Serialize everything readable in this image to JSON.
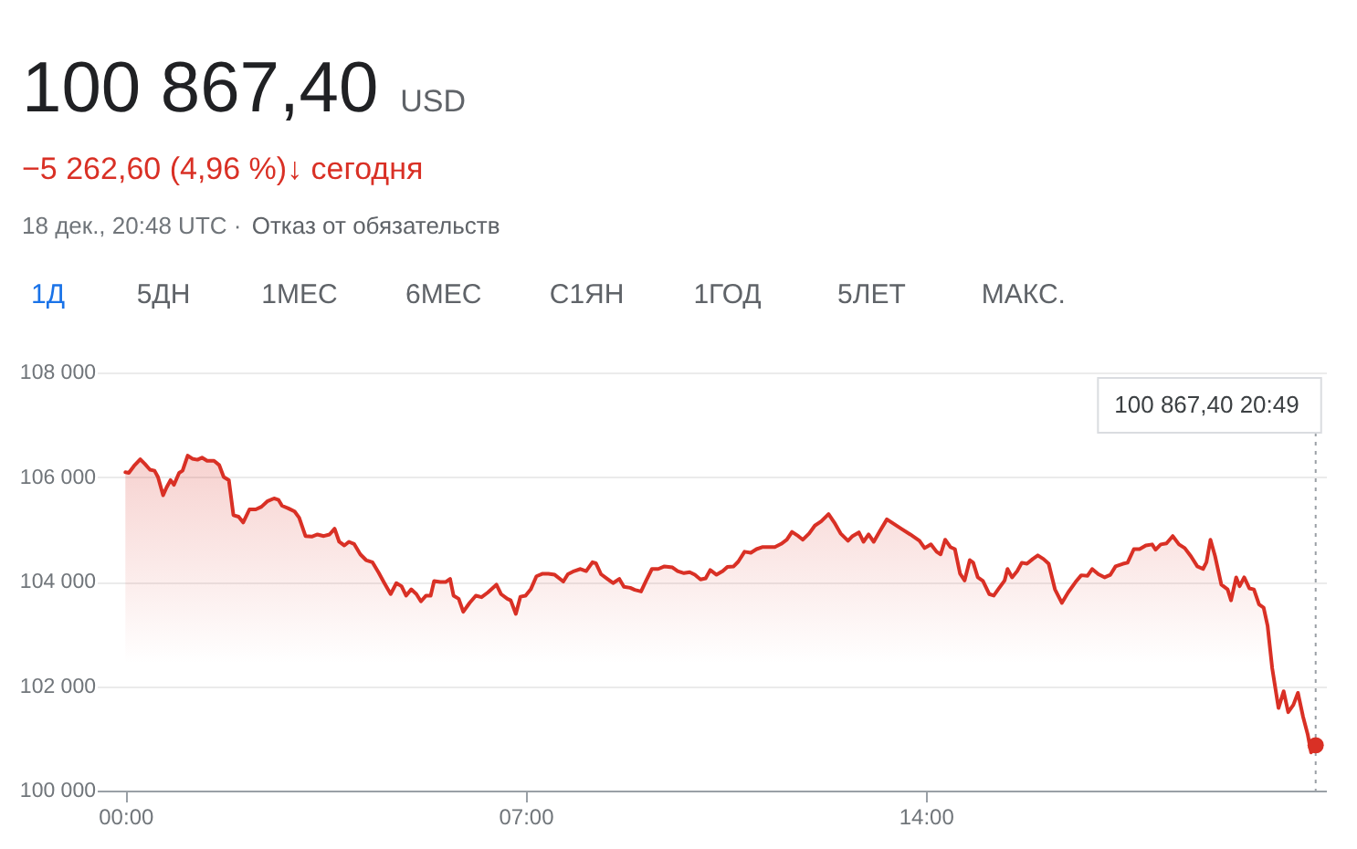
{
  "chart_data": {
    "type": "area",
    "title": "100 867,40 USD",
    "subtitle": "−5 262,60 (4,96 %)↓ сегодня",
    "annotations": [
      "18 дек., 20:48 UTC ·",
      "Отказ от обязательств",
      "1Д",
      "5ДН",
      "1МЕС",
      "6МЕС",
      "С1ЯН",
      "1ГОД",
      "5ЛЕТ",
      "МАКС.",
      "100 867,40 20:49"
    ],
    "xlim": [
      -0.5,
      21.0
    ],
    "xticks": [
      {
        "value": 0,
        "label": "00:00"
      },
      {
        "value": 7,
        "label": "07:00"
      },
      {
        "value": 14,
        "label": "14:00"
      }
    ],
    "ylim": [
      100000,
      108000
    ],
    "yticks": [
      {
        "value": 100000,
        "label": "100 000"
      },
      {
        "value": 102000,
        "label": "102 000"
      },
      {
        "value": 104000,
        "label": "104 000"
      },
      {
        "value": 106000,
        "label": "106 000"
      },
      {
        "value": 108000,
        "label": "108 000"
      }
    ],
    "grid": "y",
    "series": [
      {
        "color": "#d93025",
        "x": [
          0.0,
          0.06,
          0.15,
          0.26,
          0.34,
          0.43,
          0.51,
          0.57,
          0.66,
          0.72,
          0.79,
          0.85,
          0.94,
          1.0,
          1.09,
          1.17,
          1.26,
          1.34,
          1.43,
          1.55,
          1.64,
          1.72,
          1.81,
          1.89,
          1.98,
          2.06,
          2.17,
          2.28,
          2.38,
          2.49,
          2.6,
          2.68,
          2.74,
          2.85,
          2.96,
          3.04,
          3.15,
          3.26,
          3.36,
          3.47,
          3.57,
          3.66,
          3.74,
          3.83,
          3.91,
          4.0,
          4.11,
          4.21,
          4.32,
          4.43,
          4.53,
          4.64,
          4.74,
          4.83,
          4.91,
          5.0,
          5.09,
          5.17,
          5.26,
          5.34,
          5.4,
          5.51,
          5.6,
          5.68,
          5.74,
          5.83,
          5.91,
          6.02,
          6.13,
          6.23,
          6.34,
          6.49,
          6.57,
          6.68,
          6.74,
          6.83,
          6.91,
          7.0,
          7.09,
          7.19,
          7.3,
          7.4,
          7.51,
          7.66,
          7.74,
          7.85,
          7.96,
          8.06,
          8.17,
          8.23,
          8.32,
          8.43,
          8.53,
          8.64,
          8.72,
          8.83,
          8.91,
          9.02,
          9.11,
          9.21,
          9.32,
          9.43,
          9.57,
          9.66,
          9.77,
          9.87,
          9.96,
          10.06,
          10.15,
          10.23,
          10.34,
          10.45,
          10.53,
          10.64,
          10.72,
          10.83,
          10.94,
          11.04,
          11.15,
          11.26,
          11.36,
          11.47,
          11.57,
          11.66,
          11.77,
          11.85,
          11.96,
          12.06,
          12.17,
          12.3,
          12.4,
          12.51,
          12.64,
          12.72,
          12.83,
          12.91,
          13.0,
          13.09,
          13.19,
          13.32,
          13.43,
          13.57,
          13.73,
          13.89,
          13.98,
          14.09,
          14.19,
          14.26,
          14.34,
          14.43,
          14.51,
          14.6,
          14.68,
          14.77,
          14.83,
          14.91,
          15.0,
          15.11,
          15.19,
          15.28,
          15.38,
          15.43,
          15.51,
          15.6,
          15.68,
          15.77,
          15.87,
          15.96,
          16.06,
          16.15,
          16.26,
          16.38,
          16.49,
          16.62,
          16.72,
          16.83,
          16.91,
          17.02,
          17.13,
          17.23,
          17.32,
          17.45,
          17.53,
          17.64,
          17.74,
          17.85,
          17.96,
          18.02,
          18.11,
          18.21,
          18.32,
          18.43,
          18.53,
          18.64,
          18.75,
          18.85,
          18.91,
          18.98,
          19.06,
          19.17,
          19.28,
          19.34,
          19.43,
          19.49,
          19.57,
          19.66,
          19.74,
          19.83,
          19.91,
          19.98,
          20.06,
          20.17,
          20.26,
          20.34,
          20.43,
          20.51,
          20.6,
          20.68,
          20.74,
          20.82
        ],
        "values": [
          106090,
          106080,
          106210,
          106340,
          106250,
          106140,
          106120,
          106000,
          105650,
          105800,
          105940,
          105850,
          106080,
          106120,
          106410,
          106350,
          106330,
          106370,
          106310,
          106310,
          106230,
          106000,
          105940,
          105270,
          105240,
          105130,
          105380,
          105380,
          105430,
          105540,
          105590,
          105560,
          105450,
          105400,
          105340,
          105220,
          104870,
          104860,
          104900,
          104870,
          104900,
          105010,
          104760,
          104690,
          104760,
          104720,
          104520,
          104410,
          104370,
          104170,
          103970,
          103760,
          103970,
          103910,
          103730,
          103850,
          103760,
          103620,
          103730,
          103730,
          104010,
          103990,
          103990,
          104050,
          103730,
          103670,
          103420,
          103590,
          103730,
          103700,
          103790,
          103940,
          103760,
          103670,
          103640,
          103380,
          103710,
          103730,
          103850,
          104100,
          104150,
          104150,
          104130,
          104000,
          104140,
          104200,
          104240,
          104200,
          104370,
          104350,
          104140,
          104050,
          103970,
          104050,
          103900,
          103880,
          103840,
          103810,
          104020,
          104240,
          104240,
          104290,
          104270,
          104200,
          104160,
          104180,
          104130,
          104040,
          104060,
          104220,
          104130,
          104200,
          104280,
          104290,
          104380,
          104570,
          104550,
          104620,
          104660,
          104660,
          104660,
          104720,
          104800,
          104950,
          104870,
          104800,
          104920,
          105070,
          105150,
          105290,
          105130,
          104920,
          104780,
          104870,
          104940,
          104760,
          104900,
          104760,
          104950,
          105190,
          105110,
          105010,
          104900,
          104780,
          104640,
          104710,
          104570,
          104520,
          104800,
          104660,
          104620,
          104150,
          104020,
          104410,
          104360,
          104080,
          104010,
          103760,
          103730,
          103870,
          104020,
          104240,
          104080,
          104200,
          104360,
          104340,
          104430,
          104500,
          104430,
          104340,
          103850,
          103590,
          103790,
          103990,
          104120,
          104110,
          104240,
          104140,
          104080,
          104130,
          104290,
          104340,
          104360,
          104620,
          104620,
          104690,
          104710,
          104610,
          104710,
          104730,
          104870,
          104710,
          104640,
          104480,
          104290,
          104240,
          104370,
          104800,
          104490,
          103940,
          103850,
          103640,
          104080,
          103910,
          104080,
          103870,
          103850,
          103560,
          103500,
          103150,
          102340,
          101580,
          101900,
          101500,
          101640,
          101870,
          101410,
          101080,
          100730,
          100867.4
        ]
      },
      {
        "type": "scatter",
        "color": "#d93025",
        "x": [
          20.82
        ],
        "values": [
          100867.4
        ]
      }
    ],
    "ref_lines": [
      {
        "axis": "x",
        "value": 20.82,
        "line_style": "dotted",
        "color": "#9aa0a6"
      }
    ]
  }
}
